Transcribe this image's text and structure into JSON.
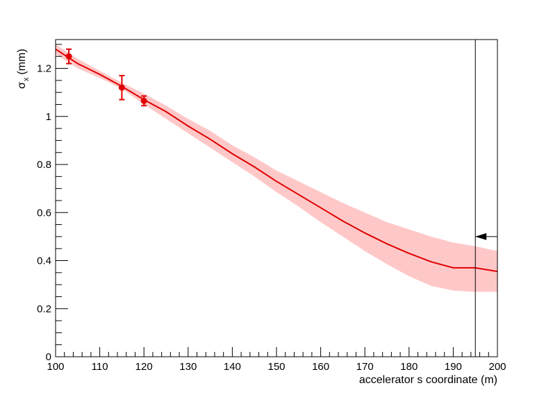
{
  "chart_data": {
    "type": "line",
    "xlabel": "accelerator s coordinate (m)",
    "ylabel_symbol": "σ",
    "ylabel_subscript": "x",
    "ylabel_unit": "(mm)",
    "xlim": [
      100,
      200
    ],
    "ylim": [
      0,
      1.32
    ],
    "xticks": [
      100,
      110,
      120,
      130,
      140,
      150,
      160,
      170,
      180,
      190,
      200
    ],
    "xtick_labels": [
      "100",
      "110",
      "120",
      "130",
      "140",
      "150",
      "160",
      "170",
      "180",
      "190",
      "200"
    ],
    "yticks": [
      0,
      0.2,
      0.4,
      0.6,
      0.8,
      1.0,
      1.2
    ],
    "ytick_labels": [
      "0",
      "0.2",
      "0.4",
      "0.6",
      "0.8",
      "1",
      "1.2"
    ],
    "grid": false,
    "colors": {
      "fit": "#e00000",
      "band": "#ffc8c8",
      "points": "#e00000",
      "marker": "#000000"
    },
    "fit_line": {
      "x": [
        100,
        105,
        110,
        115,
        120,
        125,
        130,
        135,
        140,
        145,
        150,
        155,
        160,
        165,
        170,
        175,
        180,
        185,
        190,
        195,
        200
      ],
      "y": [
        1.28,
        1.22,
        1.175,
        1.125,
        1.07,
        1.02,
        0.96,
        0.905,
        0.845,
        0.79,
        0.73,
        0.675,
        0.62,
        0.565,
        0.515,
        0.47,
        0.43,
        0.395,
        0.37,
        0.37,
        0.355
      ]
    },
    "uncertainty_band": {
      "x": [
        100,
        105,
        110,
        115,
        120,
        125,
        130,
        135,
        140,
        145,
        150,
        155,
        160,
        165,
        170,
        175,
        180,
        185,
        190,
        195,
        200
      ],
      "upper": [
        1.3,
        1.24,
        1.19,
        1.14,
        1.095,
        1.045,
        0.99,
        0.94,
        0.88,
        0.83,
        0.775,
        0.73,
        0.685,
        0.64,
        0.6,
        0.56,
        0.53,
        0.5,
        0.475,
        0.46,
        0.44
      ],
      "lower": [
        1.26,
        1.2,
        1.16,
        1.115,
        1.05,
        0.99,
        0.93,
        0.87,
        0.81,
        0.75,
        0.685,
        0.625,
        0.56,
        0.5,
        0.44,
        0.385,
        0.335,
        0.295,
        0.275,
        0.27,
        0.27
      ]
    },
    "points": [
      {
        "x": 103,
        "y": 1.25,
        "err": 0.03
      },
      {
        "x": 115,
        "y": 1.12,
        "err": 0.05
      },
      {
        "x": 120,
        "y": 1.065,
        "err": 0.02
      }
    ],
    "vertical_marker_x": 195,
    "arrow_marker": {
      "x": 195,
      "y": 0.5
    }
  }
}
